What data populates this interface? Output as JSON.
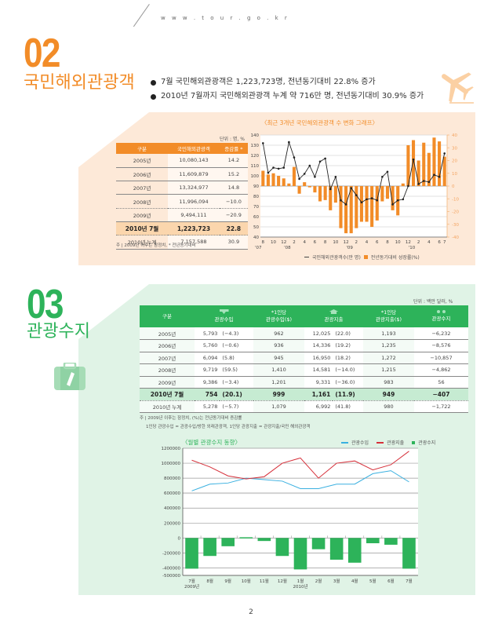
{
  "header": {
    "site_url": "w w w . t o u r . g o . k r"
  },
  "section02": {
    "number": "02",
    "title": "국민해외관광객",
    "bullets": [
      "7월 국민해외관광객은 1,223,723명, 전년동기대비 22.8% 증가",
      "2010년 7월까지 국민해외관광객 누계 약 716만 명, 전년동기대비 30.9% 증가"
    ],
    "icon": "airplane-icon",
    "table": {
      "unit": "단위 : 명, %",
      "headers": [
        "구분",
        "국민해외관광객",
        "증감률 *"
      ],
      "rows": [
        [
          "2005년",
          "10,080,143",
          "14.2"
        ],
        [
          "2006년",
          "11,609,879",
          "15.2"
        ],
        [
          "2007년",
          "13,324,977",
          "14.8"
        ],
        [
          "2008년",
          "11,996,094",
          "−10.0"
        ],
        [
          "2009년",
          "9,494,111",
          "−20.9"
        ],
        [
          "2010년 7월",
          "1,223,723",
          "22.8"
        ],
        [
          "2010년 누계",
          "7,157,588",
          "30.9"
        ]
      ],
      "note": "주 | 2009년 이후는 잠정치, * 전년동기대비"
    },
    "chart": {
      "title": "〈최근 3개년 국민해외관광객 수 변화 그래프〉",
      "legend_line": "국민해외관광객수(만 명)",
      "legend_bar": "전년동기대비 성장률(%)"
    }
  },
  "section03": {
    "number": "03",
    "title": "관광수지",
    "icon": "suitcase-icon",
    "table": {
      "unit": "단위 : 백만 달러, %",
      "headers": [
        "구분",
        "관광수입",
        "*1인당\n관광수입($)",
        "관광지출",
        "*1인당\n관광지출($)",
        "관광수지"
      ],
      "header_icons": [
        "",
        "income-arrow-icon",
        "",
        "expense-house-icon",
        "",
        "balance-people-icon"
      ],
      "rows": [
        [
          "2005년",
          "5,793",
          "(−4.3)",
          "962",
          "12,025",
          "(22.0)",
          "1,193",
          "−6,232"
        ],
        [
          "2006년",
          "5,760",
          "(−0.6)",
          "936",
          "14,336",
          "(19.2)",
          "1,235",
          "−8,576"
        ],
        [
          "2007년",
          "6,094",
          "(5.8)",
          "945",
          "16,950",
          "(18.2)",
          "1,272",
          "−10,857"
        ],
        [
          "2008년",
          "9,719",
          "(59.5)",
          "1,410",
          "14,581",
          "(−14.0)",
          "1,215",
          "−4,862"
        ],
        [
          "2009년",
          "9,386",
          "(−3.4)",
          "1,201",
          "9,331",
          "(−36.0)",
          "983",
          "56"
        ],
        [
          "2010년 7월",
          "754",
          "(20.1)",
          "999",
          "1,161",
          "(11.9)",
          "949",
          "−407"
        ],
        [
          "2010년 누계",
          "5,278",
          "(−5.7)",
          "1,079",
          "6,992",
          "(41.8)",
          "980",
          "−1,722"
        ]
      ],
      "note1": "주 | 2009년 이후는 잠정치, (%)는 전년동기대비 증감률",
      "note2": "1인당 관광수입 = 관광수입/방한 외래관광객, 1인당 관광지출 = 관광지출/국민 해외관광객"
    },
    "chart": {
      "title": "〈월별 관광수지 동향〉",
      "legend": [
        "관광수입",
        "관광지출",
        "관광수지"
      ]
    }
  },
  "page_number": "2",
  "chart_data": [
    {
      "type": "bar+line",
      "title": "최근 3개년 국민해외관광객 수 변화 그래프",
      "categories": [
        "8",
        "9",
        "10",
        "11",
        "12",
        "1",
        "2",
        "3",
        "4",
        "5",
        "6",
        "7",
        "8",
        "9",
        "10",
        "11",
        "12",
        "1",
        "2",
        "3",
        "4",
        "5",
        "6",
        "7",
        "8",
        "9",
        "10",
        "11",
        "12",
        "1",
        "2",
        "3",
        "4",
        "5",
        "6",
        "7"
      ],
      "x_tick_labels": [
        "8",
        "10",
        "12",
        "2",
        "4",
        "6",
        "8",
        "10",
        "12",
        "2",
        "4",
        "6",
        "8",
        "10",
        "12",
        "2",
        "4",
        "6",
        "7"
      ],
      "year_labels": [
        "'07",
        "'08",
        "'09",
        "'10"
      ],
      "series": [
        {
          "name": "국민해외관광객수(만 명)",
          "type": "line",
          "axis": "left",
          "values": [
            132,
            103,
            108,
            107,
            108,
            133,
            118,
            97,
            102,
            110,
            99,
            114,
            117,
            87,
            99,
            76,
            72,
            88,
            81,
            74,
            77,
            78,
            76,
            99,
            104,
            72,
            76,
            77,
            90,
            116,
            92,
            95,
            94,
            101,
            99,
            122
          ]
        },
        {
          "name": "전년동기대비 성장률(%)",
          "type": "bar",
          "axis": "right",
          "values": [
            12,
            9,
            10,
            8,
            6,
            2,
            15,
            -6,
            3,
            -1,
            -5,
            -12,
            -11,
            -19,
            -13,
            -33,
            -37,
            -37,
            -33,
            -28,
            -28,
            -32,
            -27,
            -12,
            -10,
            -19,
            -23,
            2,
            32,
            36,
            20,
            34,
            26,
            38,
            35,
            23
          ]
        }
      ],
      "ylim_left": [
        40,
        140
      ],
      "ylim_right": [
        -40,
        40
      ],
      "left_ticks": [
        40,
        50,
        60,
        70,
        80,
        90,
        100,
        110,
        120,
        130,
        140
      ],
      "right_ticks": [
        -40,
        -30,
        -20,
        -10,
        0,
        10,
        20,
        30,
        40
      ],
      "grid": true,
      "colors": {
        "line": "#222222",
        "bar": "#f28c28"
      }
    },
    {
      "type": "bar+line",
      "title": "월별 관광수지 동향",
      "categories": [
        "7월",
        "8월",
        "9월",
        "10월",
        "11월",
        "12월",
        "1월",
        "2월",
        "3월",
        "4월",
        "5월",
        "6월",
        "7월"
      ],
      "year_labels": [
        "2009년",
        "2010년"
      ],
      "series": [
        {
          "name": "관광수입",
          "type": "line",
          "color": "#3ab0e0",
          "values": [
            630000,
            720000,
            735000,
            800000,
            780000,
            760000,
            660000,
            660000,
            720000,
            720000,
            860000,
            900000,
            750000
          ]
        },
        {
          "name": "관광지출",
          "type": "line",
          "color": "#d6303a",
          "values": [
            1040000,
            950000,
            830000,
            790000,
            820000,
            1000000,
            1070000,
            800000,
            1000000,
            1030000,
            910000,
            980000,
            1160000
          ]
        },
        {
          "name": "관광수지",
          "type": "bar",
          "color": "#2db35a",
          "values": [
            -410000,
            -240000,
            -110000,
            10000,
            -40000,
            -240000,
            -420000,
            -150000,
            -290000,
            -330000,
            -70000,
            -90000,
            -410000
          ]
        }
      ],
      "y_ticks": [
        1200000,
        1000000,
        800000,
        600000,
        400000,
        200000,
        0,
        -200000,
        -400000,
        -500000
      ],
      "ylim": [
        -500000,
        1200000
      ],
      "grid": true,
      "legend_position": "top-right"
    }
  ]
}
